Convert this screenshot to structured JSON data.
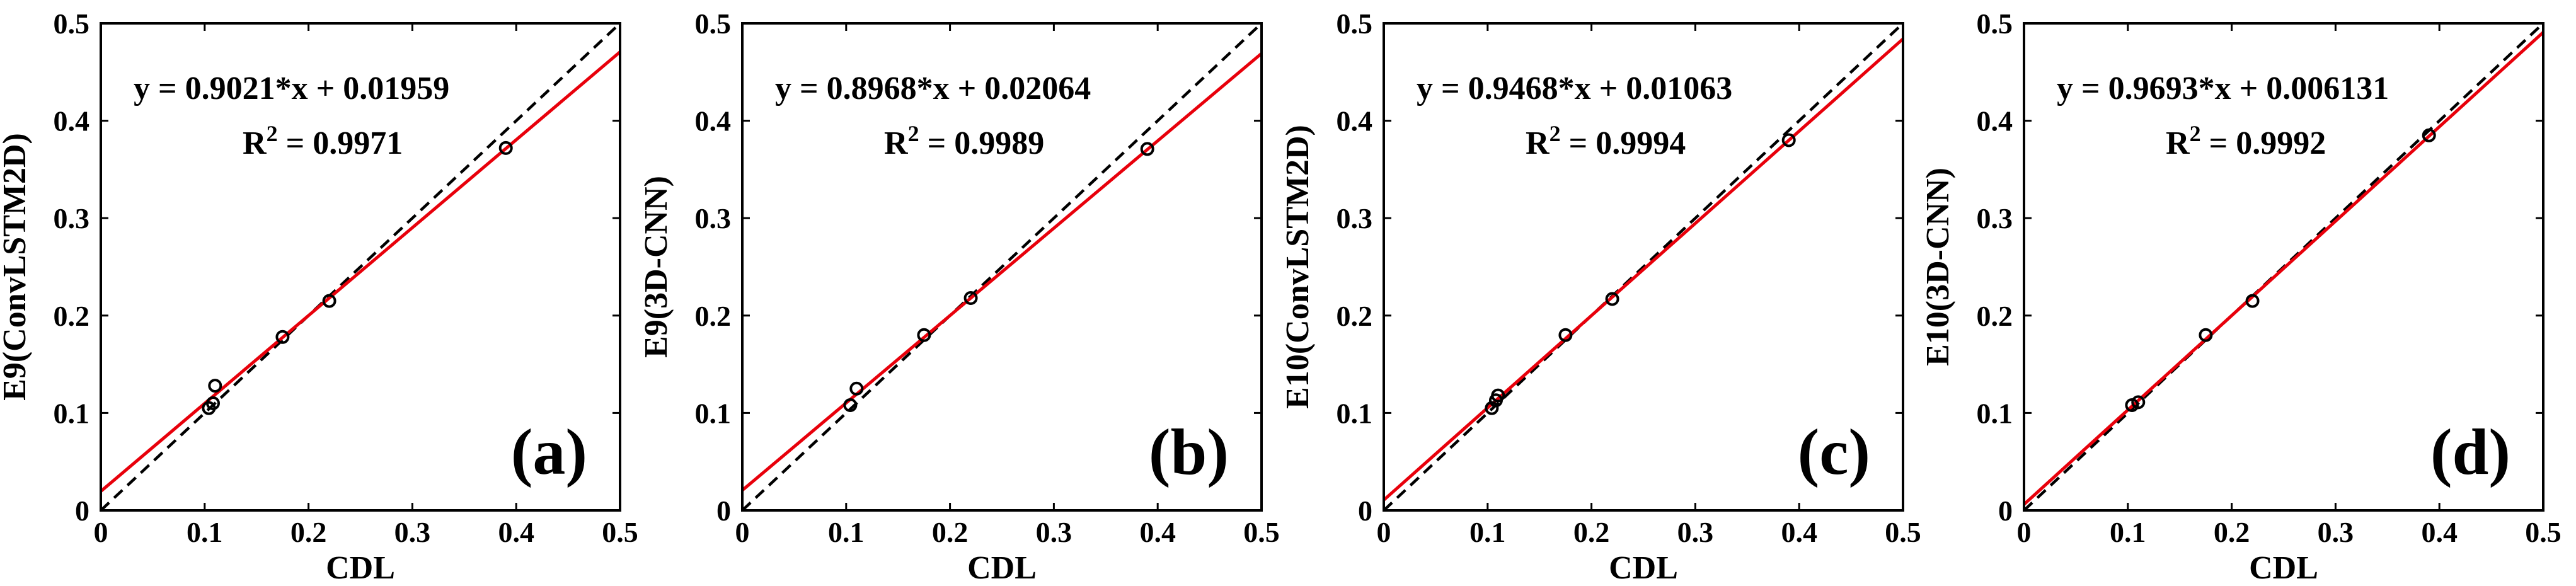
{
  "chart_data": [
    {
      "type": "scatter",
      "panel_label": "(a)",
      "xlabel": "CDL",
      "ylabel": "E9(ConvLSTM2D)",
      "xlim": [
        0,
        0.5
      ],
      "ylim": [
        0,
        0.5
      ],
      "xticks": [
        "0",
        "0.1",
        "0.2",
        "0.3",
        "0.4",
        "0.5"
      ],
      "yticks": [
        "0",
        "0.1",
        "0.2",
        "0.3",
        "0.4",
        "0.5"
      ],
      "points": [
        [
          0.104,
          0.105
        ],
        [
          0.108,
          0.11
        ],
        [
          0.11,
          0.128
        ],
        [
          0.175,
          0.178
        ],
        [
          0.22,
          0.215
        ],
        [
          0.39,
          0.372
        ]
      ],
      "fit": {
        "slope": 0.9021,
        "intercept": 0.01959,
        "color": "#e8000b"
      },
      "identity_line_color": "#000000",
      "equation": "y = 0.9021*x + 0.01959",
      "r2_label": "R",
      "r2_sup": "2",
      "r2_value": " = 0.9971"
    },
    {
      "type": "scatter",
      "panel_label": "(b)",
      "xlabel": "CDL",
      "ylabel": "E9(3D-CNN)",
      "xlim": [
        0,
        0.5
      ],
      "ylim": [
        0,
        0.5
      ],
      "xticks": [
        "0",
        "0.1",
        "0.2",
        "0.3",
        "0.4",
        "0.5"
      ],
      "yticks": [
        "0",
        "0.1",
        "0.2",
        "0.3",
        "0.4",
        "0.5"
      ],
      "points": [
        [
          0.104,
          0.108
        ],
        [
          0.11,
          0.125
        ],
        [
          0.175,
          0.18
        ],
        [
          0.22,
          0.218
        ],
        [
          0.39,
          0.371
        ]
      ],
      "fit": {
        "slope": 0.8968,
        "intercept": 0.02064,
        "color": "#e8000b"
      },
      "identity_line_color": "#000000",
      "equation": "y = 0.8968*x + 0.02064",
      "r2_label": "R",
      "r2_sup": "2",
      "r2_value": " = 0.9989"
    },
    {
      "type": "scatter",
      "panel_label": "(c)",
      "xlabel": "CDL",
      "ylabel": "E10(ConvLSTM2D)",
      "xlim": [
        0,
        0.5
      ],
      "ylim": [
        0,
        0.5
      ],
      "xticks": [
        "0",
        "0.1",
        "0.2",
        "0.3",
        "0.4",
        "0.5"
      ],
      "yticks": [
        "0",
        "0.1",
        "0.2",
        "0.3",
        "0.4",
        "0.5"
      ],
      "points": [
        [
          0.104,
          0.105
        ],
        [
          0.108,
          0.113
        ],
        [
          0.11,
          0.118
        ],
        [
          0.175,
          0.18
        ],
        [
          0.22,
          0.217
        ],
        [
          0.39,
          0.38
        ]
      ],
      "fit": {
        "slope": 0.9468,
        "intercept": 0.01063,
        "color": "#e8000b"
      },
      "identity_line_color": "#000000",
      "equation": "y = 0.9468*x + 0.01063",
      "r2_label": "R",
      "r2_sup": "2",
      "r2_value": " = 0.9994"
    },
    {
      "type": "scatter",
      "panel_label": "(d)",
      "xlabel": "CDL",
      "ylabel": "E10(3D-CNN)",
      "xlim": [
        0,
        0.5
      ],
      "ylim": [
        0,
        0.5
      ],
      "xticks": [
        "0",
        "0.1",
        "0.2",
        "0.3",
        "0.4",
        "0.5"
      ],
      "yticks": [
        "0",
        "0.1",
        "0.2",
        "0.3",
        "0.4",
        "0.5"
      ],
      "points": [
        [
          0.104,
          0.108
        ],
        [
          0.11,
          0.111
        ],
        [
          0.175,
          0.18
        ],
        [
          0.22,
          0.215
        ],
        [
          0.39,
          0.385
        ]
      ],
      "fit": {
        "slope": 0.9693,
        "intercept": 0.006131,
        "color": "#e8000b"
      },
      "identity_line_color": "#000000",
      "equation": "y = 0.9693*x + 0.006131",
      "r2_label": "R",
      "r2_sup": "2",
      "r2_value": " = 0.9992"
    }
  ]
}
